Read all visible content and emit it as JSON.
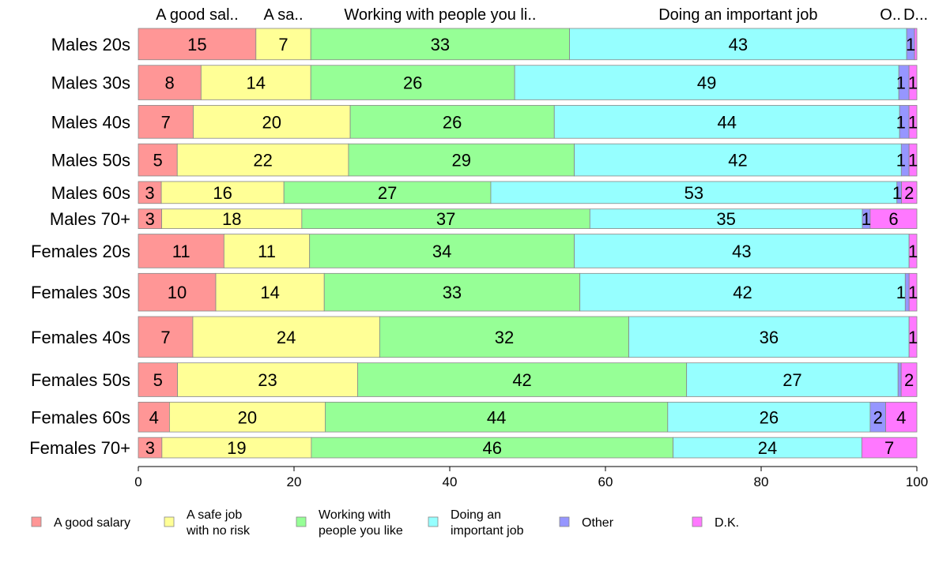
{
  "chart_data": {
    "type": "bar",
    "orientation": "horizontal-stacked",
    "xlim": [
      0,
      100
    ],
    "xticks": [
      "0",
      "20",
      "40",
      "60",
      "80",
      "100"
    ],
    "xtick_values": [
      0,
      20,
      40,
      60,
      80,
      100
    ],
    "column_headers": [
      "A good sal..",
      "A sa..",
      "Working with people you li..",
      "Doing an important job",
      "O..",
      "D..."
    ],
    "series": [
      {
        "name": "A good salary",
        "legend": [
          "A good salary"
        ],
        "color": "#ff9696"
      },
      {
        "name": "A safe job with no risk",
        "legend": [
          "A safe job",
          "with no risk"
        ],
        "color": "#ffff96"
      },
      {
        "name": "Working with people you like",
        "legend": [
          "Working with",
          "people you like"
        ],
        "color": "#96ff96"
      },
      {
        "name": "Doing an important job",
        "legend": [
          "Doing an",
          "important job"
        ],
        "color": "#96ffff"
      },
      {
        "name": "Other",
        "legend": [
          "Other"
        ],
        "color": "#9696ff"
      },
      {
        "name": "D.K.",
        "legend": [
          "D.K."
        ],
        "color": "#ff78ff"
      }
    ],
    "categories": [
      {
        "name": "Males 20s",
        "weight": 40,
        "values": [
          15,
          7,
          33,
          43,
          1,
          0.3
        ],
        "labels": [
          "15",
          "7",
          "33",
          "43",
          "1",
          ""
        ]
      },
      {
        "name": "Males 30s",
        "weight": 44,
        "values": [
          8,
          14,
          26,
          49,
          1.3,
          1
        ],
        "labels": [
          "8",
          "14",
          "26",
          "49",
          "1",
          "1"
        ]
      },
      {
        "name": "Males 40s",
        "weight": 42,
        "values": [
          7,
          20,
          26,
          44,
          1.2,
          1
        ],
        "labels": [
          "7",
          "20",
          "26",
          "44",
          "1",
          "1"
        ]
      },
      {
        "name": "Males 50s",
        "weight": 41,
        "values": [
          5,
          22,
          29,
          42,
          1,
          1
        ],
        "labels": [
          "5",
          "22",
          "29",
          "42",
          "1",
          "1"
        ]
      },
      {
        "name": "Males 60s",
        "weight": 28,
        "values": [
          3,
          16,
          27,
          53,
          0.6,
          2
        ],
        "labels": [
          "3",
          "16",
          "27",
          "53",
          "1",
          "2"
        ]
      },
      {
        "name": "Males 70+",
        "weight": 25,
        "values": [
          3,
          18,
          37,
          35,
          1,
          6
        ],
        "labels": [
          "3",
          "18",
          "37",
          "35",
          "1",
          "6"
        ]
      },
      {
        "name": "Females 20s",
        "weight": 43,
        "values": [
          11,
          11,
          34,
          43,
          0,
          1
        ],
        "labels": [
          "11",
          "11",
          "34",
          "43",
          "",
          "1"
        ]
      },
      {
        "name": "Females 30s",
        "weight": 48,
        "values": [
          10,
          14,
          33,
          42,
          0.5,
          1
        ],
        "labels": [
          "10",
          "14",
          "33",
          "42",
          "1",
          "1"
        ]
      },
      {
        "name": "Females 40s",
        "weight": 52,
        "values": [
          7,
          24,
          32,
          36,
          0,
          1
        ],
        "labels": [
          "7",
          "24",
          "32",
          "36",
          "",
          "1"
        ]
      },
      {
        "name": "Females 50s",
        "weight": 43,
        "values": [
          5,
          23,
          42,
          27,
          0.4,
          2
        ],
        "labels": [
          "5",
          "23",
          "42",
          "27",
          "",
          "2"
        ]
      },
      {
        "name": "Females 60s",
        "weight": 38,
        "values": [
          4,
          20,
          44,
          26,
          2,
          4
        ],
        "labels": [
          "4",
          "20",
          "44",
          "26",
          "2",
          "4"
        ]
      },
      {
        "name": "Females 70+",
        "weight": 26,
        "values": [
          3,
          19,
          46,
          24,
          0,
          7
        ],
        "labels": [
          "3",
          "19",
          "46",
          "24",
          "",
          "7"
        ]
      }
    ]
  }
}
